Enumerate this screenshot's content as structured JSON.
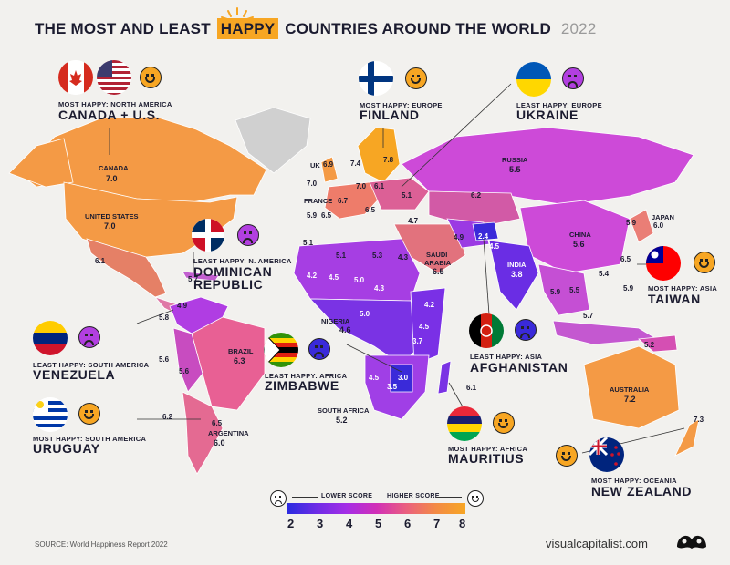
{
  "title": {
    "pre": "THE MOST AND LEAST",
    "highlight": "HAPPY",
    "post": "COUNTRIES AROUND THE WORLD",
    "year": "2022"
  },
  "callouts": {
    "canada_us": {
      "sub": "MOST HAPPY: NORTH AMERICA",
      "name": "CANADA + U.S."
    },
    "finland": {
      "sub": "MOST HAPPY: EUROPE",
      "name": "FINLAND"
    },
    "ukraine": {
      "sub": "LEAST HAPPY: EUROPE",
      "name": "UKRAINE"
    },
    "dominican": {
      "sub": "LEAST HAPPY: N. AMERICA",
      "name1": "DOMINICAN",
      "name2": "REPUBLIC"
    },
    "taiwan": {
      "sub": "MOST HAPPY: ASIA",
      "name": "TAIWAN"
    },
    "venezuela": {
      "sub": "LEAST HAPPY: SOUTH AMERICA",
      "name": "VENEZUELA"
    },
    "zimbabwe": {
      "sub": "LEAST HAPPY: AFRICA",
      "name": "ZIMBABWE"
    },
    "afghanistan": {
      "sub": "LEAST HAPPY: ASIA",
      "name": "AFGHANISTAN"
    },
    "uruguay": {
      "sub": "MOST HAPPY: SOUTH AMERICA",
      "name": "URUGUAY"
    },
    "mauritius": {
      "sub": "MOST HAPPY: AFRICA",
      "name": "MAURITIUS"
    },
    "new_zealand": {
      "sub": "MOST HAPPY: OCEANIA",
      "name": "NEW ZEALAND"
    }
  },
  "country_labels": {
    "canada": "CANADA",
    "canada_v": "7.0",
    "us": "UNITED STATES",
    "us_v": "7.0",
    "mexico_v": "6.1",
    "dr_v": "5.7",
    "uk": "UK",
    "uk_v": "6.9",
    "ie_v": "7.0",
    "france": "FRANCE",
    "fr_v": "6.7",
    "es_v": "6.5",
    "pt_v": "5.9",
    "no_v": "7.4",
    "fi_v": "7.8",
    "de_v": "7.0",
    "pl_v": "6.1",
    "ua_v": "5.1",
    "it_v": "6.5",
    "russia": "RUSSIA",
    "russia_v": "5.5",
    "kz_v": "6.2",
    "tr_v": "4.7",
    "ir_v": "4.9",
    "af_v": "2.4",
    "pk_v": "4.5",
    "india": "INDIA",
    "india_v": "3.8",
    "china": "CHINA",
    "china_v": "5.6",
    "japan": "JAPAN",
    "japan_v": "6.0",
    "kr_v": "5.9",
    "tw_v": "6.5",
    "mm_v": "5.9",
    "th_v": "5.5",
    "vn_v": "5.4",
    "ph_v": "5.9",
    "id_v": "5.7",
    "png_v": "5.2",
    "australia": "AUSTRALIA",
    "australia_v": "7.2",
    "nz_v": "7.3",
    "saudi": "SAUDI",
    "arabia": "ARABIA",
    "sa_v": "6.5",
    "ma_v": "5.1",
    "dz_v": "5.1",
    "ly_v": "5.3",
    "eg_v": "4.3",
    "ml_v": "4.2",
    "ne_v": "4.5",
    "td_v": "5.0",
    "sd_v": "4.3",
    "nigeria": "NIGERIA",
    "ng_v": "4.6",
    "cm_v": "5.0",
    "et_v": "4.2",
    "ke_v": "4.5",
    "tz_v": "3.7",
    "zw_v": "3.0",
    "bw_v": "3.5",
    "na_v": "4.5",
    "south_africa": "SOUTH AFRICA",
    "za_v": "5.2",
    "mu_v": "6.1",
    "co_v": "5.8",
    "ve_v": "4.9",
    "pe_v": "5.6",
    "bo_v": "5.6",
    "brazil": "BRAZIL",
    "brazil_v": "6.3",
    "cl_v": "6.2",
    "uy_v": "6.5",
    "argentina": "ARGENTINA",
    "argentina_v": "6.0"
  },
  "legend": {
    "lower": "LOWER SCORE",
    "higher": "HIGHER SCORE",
    "ticks": [
      "2",
      "3",
      "4",
      "5",
      "6",
      "7",
      "8"
    ]
  },
  "source": "SOURCE: World Happiness Report 2022",
  "brand": "visualcapitalist.com",
  "colors": {
    "accent": "#f7a623",
    "low": "#2b2be0",
    "high": "#f7a623",
    "no_data": "#d0d0d0"
  }
}
